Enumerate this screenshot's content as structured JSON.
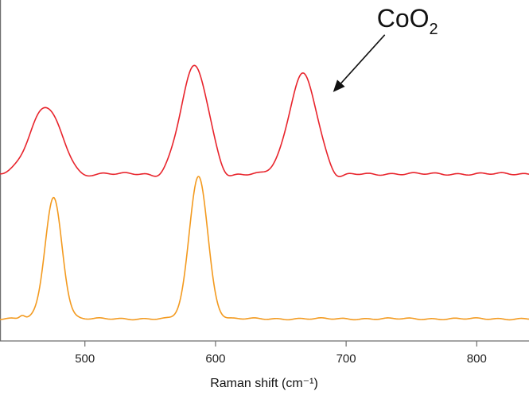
{
  "chart_data": {
    "type": "line",
    "title": "",
    "xlabel": "Raman shift (cm⁻¹)",
    "ylabel": "",
    "xlim": [
      435,
      840
    ],
    "ylim": [
      0,
      1
    ],
    "x_ticks": [
      500,
      600,
      700,
      800
    ],
    "x_tick_labels": [
      "500",
      "600",
      "700",
      "800"
    ],
    "y_ticks_shown": false,
    "grid": false,
    "legend": "none",
    "series": [
      {
        "color": "#e8242c",
        "baseline": 0.49,
        "noise": 0.004,
        "peaks": [
          {
            "center": 470,
            "height": 0.195,
            "width": 12
          },
          {
            "center": 584,
            "height": 0.315,
            "width": 10.5
          },
          {
            "center": 667,
            "height": 0.295,
            "width": 10.5
          }
        ],
        "dips": [
          {
            "center": 498,
            "depth": 0.012,
            "width": 5
          },
          {
            "center": 556,
            "depth": 0.01,
            "width": 5
          },
          {
            "center": 608,
            "depth": 0.018,
            "width": 5
          },
          {
            "center": 693,
            "depth": 0.018,
            "width": 5
          }
        ]
      },
      {
        "color": "#f39a1f",
        "baseline": 0.065,
        "noise": 0.003,
        "peaks": [
          {
            "center": 476,
            "height": 0.355,
            "width": 6.5
          },
          {
            "center": 587,
            "height": 0.42,
            "width": 7
          },
          {
            "center": 452,
            "height": 0.01,
            "width": 2
          }
        ],
        "dips": []
      }
    ],
    "annotations": [
      {
        "text": "CoO",
        "subscript": "2",
        "points_to_x": 690,
        "points_to_y": 0.73
      }
    ]
  },
  "colors": {
    "axis": "#6e6e6e",
    "arrow": "#111111"
  }
}
